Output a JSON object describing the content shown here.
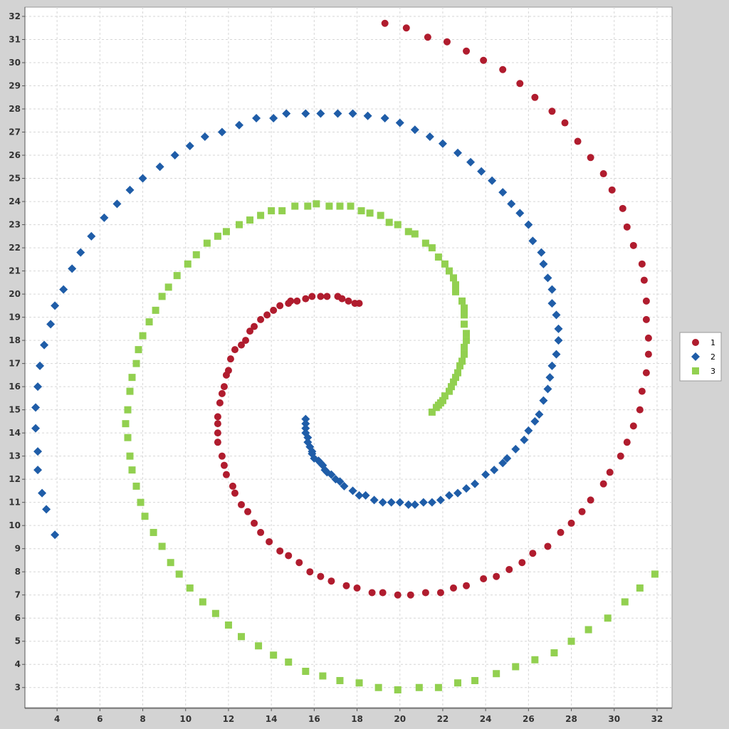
{
  "chart_data": {
    "type": "scatter",
    "xlim": [
      2.5,
      32.7
    ],
    "ylim": [
      2.1,
      32.4
    ],
    "x_ticks": [
      4,
      6,
      8,
      10,
      12,
      14,
      16,
      18,
      20,
      22,
      24,
      26,
      28,
      30,
      32
    ],
    "y_ticks": [
      3,
      4,
      5,
      6,
      7,
      8,
      9,
      10,
      11,
      12,
      13,
      14,
      15,
      16,
      17,
      18,
      19,
      20,
      21,
      22,
      23,
      24,
      25,
      26,
      27,
      28,
      29,
      30,
      31,
      32
    ],
    "x_tick_labels": [
      "4",
      "6",
      "8",
      "10",
      "12",
      "14",
      "16",
      "18",
      "20",
      "22",
      "24",
      "26",
      "28",
      "30",
      "32"
    ],
    "y_tick_labels": [
      "3",
      "4",
      "5",
      "6",
      "7",
      "8",
      "9",
      "10",
      "11",
      "12",
      "13",
      "14",
      "15",
      "16",
      "17",
      "18",
      "19",
      "20",
      "21",
      "22",
      "23",
      "24",
      "25",
      "26",
      "27",
      "28",
      "29",
      "30",
      "31",
      "32"
    ],
    "grid": true,
    "legend_position": "right",
    "series": [
      {
        "name": "1",
        "marker": "circle",
        "color": "#b01c2e",
        "points": [
          [
            18.1,
            19.6
          ],
          [
            17.9,
            19.6
          ],
          [
            17.6,
            19.7
          ],
          [
            17.3,
            19.8
          ],
          [
            17.1,
            19.9
          ],
          [
            16.6,
            19.9
          ],
          [
            16.3,
            19.9
          ],
          [
            15.9,
            19.9
          ],
          [
            15.6,
            19.8
          ],
          [
            15.2,
            19.7
          ],
          [
            14.9,
            19.7
          ],
          [
            14.8,
            19.6
          ],
          [
            14.4,
            19.5
          ],
          [
            14.1,
            19.3
          ],
          [
            13.8,
            19.1
          ],
          [
            13.5,
            18.9
          ],
          [
            13.2,
            18.6
          ],
          [
            13.0,
            18.4
          ],
          [
            12.8,
            18.0
          ],
          [
            12.6,
            17.8
          ],
          [
            12.3,
            17.6
          ],
          [
            12.1,
            17.2
          ],
          [
            12.0,
            16.7
          ],
          [
            11.9,
            16.5
          ],
          [
            11.8,
            16.0
          ],
          [
            11.7,
            15.7
          ],
          [
            11.6,
            15.3
          ],
          [
            11.5,
            14.7
          ],
          [
            11.5,
            14.4
          ],
          [
            11.5,
            14.0
          ],
          [
            11.5,
            13.6
          ],
          [
            11.7,
            13.0
          ],
          [
            11.8,
            12.6
          ],
          [
            11.9,
            12.2
          ],
          [
            12.2,
            11.7
          ],
          [
            12.3,
            11.4
          ],
          [
            12.6,
            10.9
          ],
          [
            12.9,
            10.6
          ],
          [
            13.2,
            10.1
          ],
          [
            13.5,
            9.7
          ],
          [
            13.9,
            9.3
          ],
          [
            14.4,
            8.9
          ],
          [
            14.8,
            8.7
          ],
          [
            15.3,
            8.4
          ],
          [
            15.8,
            8.0
          ],
          [
            16.3,
            7.8
          ],
          [
            16.8,
            7.6
          ],
          [
            17.5,
            7.4
          ],
          [
            18.0,
            7.3
          ],
          [
            18.7,
            7.1
          ],
          [
            19.2,
            7.1
          ],
          [
            19.9,
            7.0
          ],
          [
            20.5,
            7.0
          ],
          [
            21.2,
            7.1
          ],
          [
            21.9,
            7.1
          ],
          [
            22.5,
            7.3
          ],
          [
            23.1,
            7.4
          ],
          [
            23.9,
            7.7
          ],
          [
            24.5,
            7.8
          ],
          [
            25.1,
            8.1
          ],
          [
            25.7,
            8.4
          ],
          [
            26.2,
            8.8
          ],
          [
            26.9,
            9.1
          ],
          [
            27.5,
            9.7
          ],
          [
            28.0,
            10.1
          ],
          [
            28.5,
            10.6
          ],
          [
            28.9,
            11.1
          ],
          [
            29.5,
            11.8
          ],
          [
            29.8,
            12.3
          ],
          [
            30.3,
            13.0
          ],
          [
            30.6,
            13.6
          ],
          [
            30.9,
            14.3
          ],
          [
            31.2,
            15.0
          ],
          [
            31.3,
            15.8
          ],
          [
            31.5,
            16.6
          ],
          [
            31.6,
            17.4
          ],
          [
            31.6,
            18.1
          ],
          [
            31.5,
            18.9
          ],
          [
            31.5,
            19.7
          ],
          [
            31.4,
            20.6
          ],
          [
            31.3,
            21.3
          ],
          [
            30.9,
            22.1
          ],
          [
            30.6,
            22.9
          ],
          [
            30.4,
            23.7
          ],
          [
            29.9,
            24.5
          ],
          [
            29.5,
            25.2
          ],
          [
            28.9,
            25.9
          ],
          [
            28.3,
            26.6
          ],
          [
            27.7,
            27.4
          ],
          [
            27.1,
            27.9
          ],
          [
            26.3,
            28.5
          ],
          [
            25.6,
            29.1
          ],
          [
            24.8,
            29.7
          ],
          [
            23.9,
            30.1
          ],
          [
            23.1,
            30.5
          ],
          [
            22.2,
            30.9
          ],
          [
            21.3,
            31.1
          ],
          [
            20.3,
            31.5
          ],
          [
            19.3,
            31.7
          ]
        ]
      },
      {
        "name": "2",
        "marker": "diamond",
        "color": "#1f5da8",
        "points": [
          [
            15.6,
            14.6
          ],
          [
            15.6,
            14.4
          ],
          [
            15.6,
            14.2
          ],
          [
            15.6,
            14.0
          ],
          [
            15.7,
            13.8
          ],
          [
            15.7,
            13.6
          ],
          [
            15.8,
            13.4
          ],
          [
            15.9,
            13.2
          ],
          [
            15.9,
            13.1
          ],
          [
            16.0,
            12.9
          ],
          [
            16.2,
            12.8
          ],
          [
            16.3,
            12.7
          ],
          [
            16.4,
            12.6
          ],
          [
            16.5,
            12.4
          ],
          [
            16.6,
            12.3
          ],
          [
            16.8,
            12.2
          ],
          [
            17.0,
            12.0
          ],
          [
            17.2,
            11.9
          ],
          [
            17.4,
            11.7
          ],
          [
            17.8,
            11.5
          ],
          [
            18.1,
            11.3
          ],
          [
            18.4,
            11.3
          ],
          [
            18.8,
            11.1
          ],
          [
            19.2,
            11.0
          ],
          [
            19.6,
            11.0
          ],
          [
            20.0,
            11.0
          ],
          [
            20.4,
            10.9
          ],
          [
            20.7,
            10.9
          ],
          [
            21.1,
            11.0
          ],
          [
            21.5,
            11.0
          ],
          [
            21.9,
            11.1
          ],
          [
            22.3,
            11.3
          ],
          [
            22.7,
            11.4
          ],
          [
            23.1,
            11.6
          ],
          [
            23.5,
            11.8
          ],
          [
            24.0,
            12.2
          ],
          [
            24.4,
            12.4
          ],
          [
            24.8,
            12.7
          ],
          [
            25.0,
            12.9
          ],
          [
            25.4,
            13.3
          ],
          [
            25.8,
            13.7
          ],
          [
            26.0,
            14.1
          ],
          [
            26.3,
            14.5
          ],
          [
            26.5,
            14.8
          ],
          [
            26.7,
            15.4
          ],
          [
            26.9,
            15.9
          ],
          [
            27.0,
            16.4
          ],
          [
            27.1,
            16.9
          ],
          [
            27.3,
            17.4
          ],
          [
            27.4,
            18.0
          ],
          [
            27.4,
            18.5
          ],
          [
            27.3,
            19.1
          ],
          [
            27.1,
            19.6
          ],
          [
            27.1,
            20.2
          ],
          [
            26.9,
            20.7
          ],
          [
            26.7,
            21.3
          ],
          [
            26.6,
            21.8
          ],
          [
            26.2,
            22.3
          ],
          [
            26.0,
            23.0
          ],
          [
            25.6,
            23.5
          ],
          [
            25.2,
            23.9
          ],
          [
            24.8,
            24.4
          ],
          [
            24.3,
            24.9
          ],
          [
            23.8,
            25.3
          ],
          [
            23.3,
            25.7
          ],
          [
            22.7,
            26.1
          ],
          [
            22.0,
            26.5
          ],
          [
            21.4,
            26.8
          ],
          [
            20.7,
            27.1
          ],
          [
            20.0,
            27.4
          ],
          [
            19.3,
            27.6
          ],
          [
            18.5,
            27.7
          ],
          [
            17.8,
            27.8
          ],
          [
            17.1,
            27.8
          ],
          [
            16.3,
            27.8
          ],
          [
            15.6,
            27.8
          ],
          [
            14.7,
            27.8
          ],
          [
            14.1,
            27.6
          ],
          [
            13.3,
            27.6
          ],
          [
            12.5,
            27.3
          ],
          [
            11.7,
            27.0
          ],
          [
            10.9,
            26.8
          ],
          [
            10.2,
            26.4
          ],
          [
            9.5,
            26.0
          ],
          [
            8.8,
            25.5
          ],
          [
            8.0,
            25.0
          ],
          [
            7.4,
            24.5
          ],
          [
            6.8,
            23.9
          ],
          [
            6.2,
            23.3
          ],
          [
            5.6,
            22.5
          ],
          [
            5.1,
            21.8
          ],
          [
            4.7,
            21.1
          ],
          [
            4.3,
            20.2
          ],
          [
            3.9,
            19.5
          ],
          [
            3.7,
            18.7
          ],
          [
            3.4,
            17.8
          ],
          [
            3.2,
            16.9
          ],
          [
            3.1,
            16.0
          ],
          [
            3.0,
            15.1
          ],
          [
            3.0,
            14.2
          ],
          [
            3.1,
            13.2
          ],
          [
            3.1,
            12.4
          ],
          [
            3.3,
            11.4
          ],
          [
            3.5,
            10.7
          ],
          [
            3.9,
            9.6
          ]
        ]
      },
      {
        "name": "3",
        "marker": "square",
        "color": "#92d050",
        "points": [
          [
            21.5,
            14.9
          ],
          [
            21.7,
            15.1
          ],
          [
            21.8,
            15.2
          ],
          [
            21.9,
            15.3
          ],
          [
            22.0,
            15.4
          ],
          [
            22.1,
            15.6
          ],
          [
            22.3,
            15.8
          ],
          [
            22.4,
            16.0
          ],
          [
            22.5,
            16.2
          ],
          [
            22.6,
            16.4
          ],
          [
            22.7,
            16.6
          ],
          [
            22.8,
            16.9
          ],
          [
            22.9,
            17.1
          ],
          [
            23.0,
            17.4
          ],
          [
            23.0,
            17.7
          ],
          [
            23.1,
            18.0
          ],
          [
            23.1,
            18.3
          ],
          [
            23.0,
            18.7
          ],
          [
            23.0,
            19.1
          ],
          [
            23.0,
            19.4
          ],
          [
            22.9,
            19.7
          ],
          [
            22.6,
            20.1
          ],
          [
            22.6,
            20.4
          ],
          [
            22.5,
            20.7
          ],
          [
            22.3,
            21.0
          ],
          [
            22.1,
            21.3
          ],
          [
            21.8,
            21.6
          ],
          [
            21.5,
            22.0
          ],
          [
            21.2,
            22.2
          ],
          [
            20.7,
            22.6
          ],
          [
            20.4,
            22.7
          ],
          [
            19.9,
            23.0
          ],
          [
            19.5,
            23.1
          ],
          [
            19.1,
            23.4
          ],
          [
            18.6,
            23.5
          ],
          [
            18.2,
            23.6
          ],
          [
            17.7,
            23.8
          ],
          [
            17.2,
            23.8
          ],
          [
            16.7,
            23.8
          ],
          [
            16.1,
            23.9
          ],
          [
            15.7,
            23.8
          ],
          [
            15.1,
            23.8
          ],
          [
            14.5,
            23.6
          ],
          [
            14.0,
            23.6
          ],
          [
            13.5,
            23.4
          ],
          [
            13.0,
            23.2
          ],
          [
            12.5,
            23.0
          ],
          [
            11.9,
            22.7
          ],
          [
            11.5,
            22.5
          ],
          [
            11.0,
            22.2
          ],
          [
            10.5,
            21.7
          ],
          [
            10.1,
            21.3
          ],
          [
            9.6,
            20.8
          ],
          [
            9.2,
            20.3
          ],
          [
            8.9,
            19.9
          ],
          [
            8.6,
            19.3
          ],
          [
            8.3,
            18.8
          ],
          [
            8.0,
            18.2
          ],
          [
            7.8,
            17.6
          ],
          [
            7.7,
            17.0
          ],
          [
            7.5,
            16.4
          ],
          [
            7.4,
            15.8
          ],
          [
            7.3,
            15.0
          ],
          [
            7.2,
            14.4
          ],
          [
            7.3,
            13.8
          ],
          [
            7.4,
            13.0
          ],
          [
            7.5,
            12.4
          ],
          [
            7.7,
            11.7
          ],
          [
            7.9,
            11.0
          ],
          [
            8.1,
            10.4
          ],
          [
            8.5,
            9.7
          ],
          [
            8.9,
            9.1
          ],
          [
            9.3,
            8.4
          ],
          [
            9.7,
            7.9
          ],
          [
            10.2,
            7.3
          ],
          [
            10.8,
            6.7
          ],
          [
            11.4,
            6.2
          ],
          [
            12.0,
            5.7
          ],
          [
            12.6,
            5.2
          ],
          [
            13.4,
            4.8
          ],
          [
            14.1,
            4.4
          ],
          [
            14.8,
            4.1
          ],
          [
            15.6,
            3.7
          ],
          [
            16.4,
            3.5
          ],
          [
            17.2,
            3.3
          ],
          [
            18.1,
            3.2
          ],
          [
            19.0,
            3.0
          ],
          [
            19.9,
            2.9
          ],
          [
            20.9,
            3.0
          ],
          [
            21.8,
            3.0
          ],
          [
            22.7,
            3.2
          ],
          [
            23.5,
            3.3
          ],
          [
            24.5,
            3.6
          ],
          [
            25.4,
            3.9
          ],
          [
            26.3,
            4.2
          ],
          [
            27.2,
            4.5
          ],
          [
            28.0,
            5.0
          ],
          [
            28.8,
            5.5
          ],
          [
            29.7,
            6.0
          ],
          [
            30.5,
            6.7
          ],
          [
            31.2,
            7.3
          ],
          [
            31.9,
            7.9
          ]
        ]
      }
    ]
  }
}
